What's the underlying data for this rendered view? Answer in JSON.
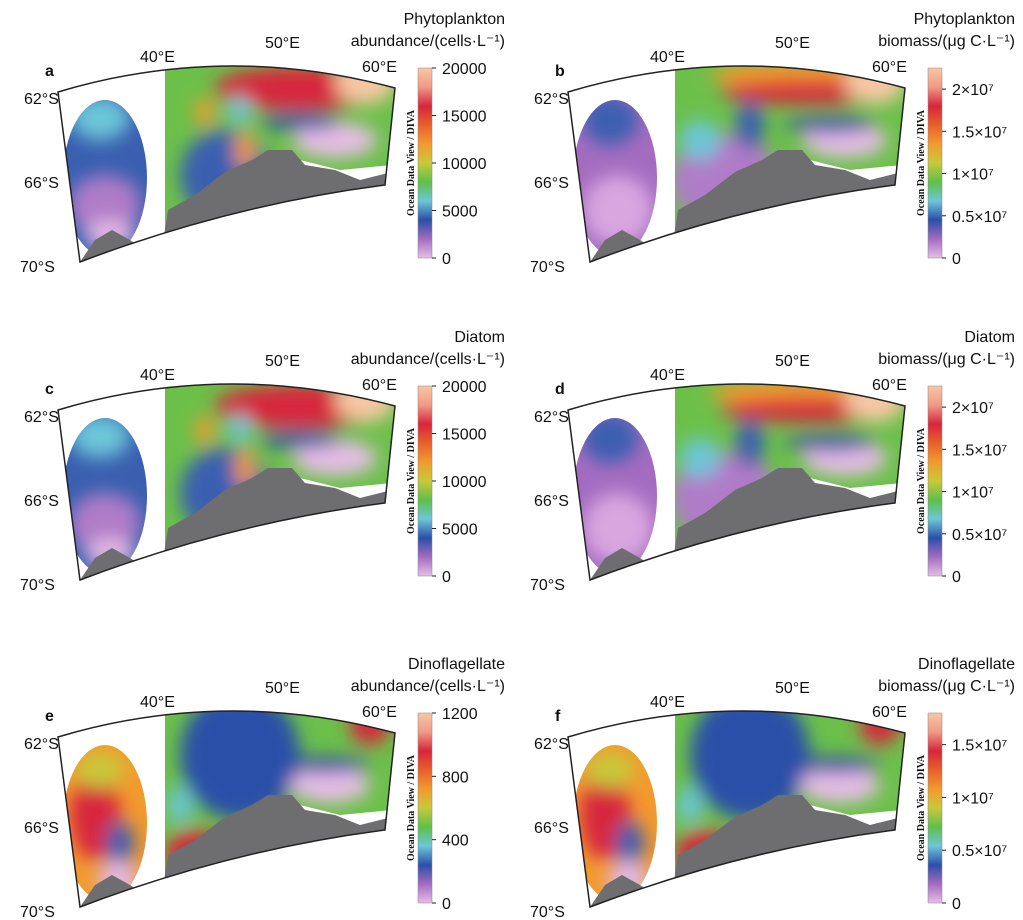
{
  "map": {
    "lon_labels": [
      "40°E",
      "50°E",
      "60°E"
    ],
    "lat_labels": [
      "62°S",
      "66°S",
      "70°S"
    ],
    "watermark": "Ocean Data View / DIVA",
    "colorbar_colors": [
      "#f8c7a4",
      "#f09a86",
      "#d7263d",
      "#e8602a",
      "#f29a2e",
      "#c7c93a",
      "#5fbf4a",
      "#6cc6d8",
      "#2c4fa8",
      "#a46cc0",
      "#e6bde6"
    ]
  },
  "panels": [
    {
      "label": "a",
      "title": [
        "Phytoplankton",
        "abundance/(cells·L⁻¹)"
      ],
      "colorbar": {
        "lim": [
          0,
          20000
        ],
        "ticks": [
          0,
          5000,
          10000,
          15000,
          20000
        ]
      }
    },
    {
      "label": "b",
      "title": [
        "Phytoplankton",
        "biomass/(μg C·L⁻¹)"
      ],
      "colorbar": {
        "lim": [
          0,
          22500000
        ],
        "ticks": [
          0,
          {
            "value": 5000000,
            "label": "0.5×10⁷"
          },
          {
            "value": 10000000,
            "label": "1×10⁷"
          },
          {
            "value": 15000000,
            "label": "1.5×10⁷"
          },
          {
            "value": 20000000,
            "label": "2×10⁷"
          }
        ]
      }
    },
    {
      "label": "c",
      "title": [
        "Diatom",
        "abundance/(cells·L⁻¹)"
      ],
      "colorbar": {
        "lim": [
          0,
          20000
        ],
        "ticks": [
          0,
          5000,
          10000,
          15000,
          20000
        ]
      }
    },
    {
      "label": "d",
      "title": [
        "Diatom",
        "biomass/(μg C·L⁻¹)"
      ],
      "colorbar": {
        "lim": [
          0,
          22500000
        ],
        "ticks": [
          0,
          {
            "value": 5000000,
            "label": "0.5×10⁷"
          },
          {
            "value": 10000000,
            "label": "1×10⁷"
          },
          {
            "value": 15000000,
            "label": "1.5×10⁷"
          },
          {
            "value": 20000000,
            "label": "2×10⁷"
          }
        ]
      }
    },
    {
      "label": "e",
      "title": [
        "Dinoflagellate",
        "abundance/(cells·L⁻¹)"
      ],
      "colorbar": {
        "lim": [
          0,
          1200
        ],
        "ticks": [
          0,
          400,
          800,
          1200
        ]
      }
    },
    {
      "label": "f",
      "title": [
        "Dinoflagellate",
        "biomass/(μg C·L⁻¹)"
      ],
      "colorbar": {
        "lim": [
          0,
          18000000
        ],
        "ticks": [
          0,
          {
            "value": 5000000,
            "label": "0.5×10⁷"
          },
          {
            "value": 10000000,
            "label": "1×10⁷"
          },
          {
            "value": 15000000,
            "label": "1.5×10⁷"
          }
        ]
      }
    }
  ]
}
